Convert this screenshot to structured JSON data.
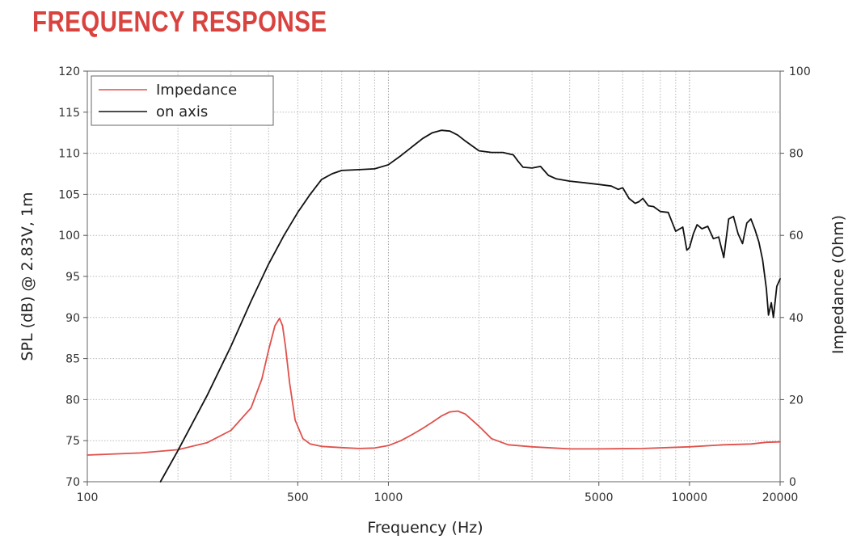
{
  "title": "FREQUENCY RESPONSE",
  "colors": {
    "title": "#d9433f",
    "impedance": "#e0514c",
    "on_axis": "#111111",
    "grid": "#b8b8b8"
  },
  "chart_data": {
    "type": "line",
    "xscale": "log",
    "xlabel": "Frequency (Hz)",
    "ylabel": "SPL (dB) @ 2.83V, 1m",
    "y2label": "Impedance (Ohm)",
    "xlim": [
      100,
      20000
    ],
    "ylim": [
      70,
      120
    ],
    "y2lim": [
      0,
      100
    ],
    "x_ticks": [
      100,
      500,
      1000,
      5000,
      10000,
      20000
    ],
    "x_tick_labels": [
      "100",
      "500",
      "1000",
      "5000",
      "10000",
      "20000"
    ],
    "y_ticks": [
      70,
      75,
      80,
      85,
      90,
      95,
      100,
      105,
      110,
      115,
      120
    ],
    "y_tick_labels": [
      "70",
      "75",
      "80",
      "85",
      "90",
      "95",
      "100",
      "105",
      "110",
      "115",
      "120"
    ],
    "y2_ticks": [
      0,
      20,
      40,
      60,
      80,
      100
    ],
    "y2_tick_labels": [
      "0",
      "20",
      "40",
      "60",
      "80",
      "100"
    ],
    "legend_position": "top-left",
    "legend": [
      "Impedance",
      "on axis"
    ],
    "series": [
      {
        "name": "Impedance",
        "axis": "right",
        "x": [
          100,
          150,
          200,
          250,
          300,
          350,
          380,
          400,
          420,
          435,
          445,
          455,
          470,
          490,
          520,
          550,
          600,
          700,
          800,
          900,
          1000,
          1100,
          1200,
          1300,
          1400,
          1500,
          1600,
          1700,
          1800,
          2000,
          2200,
          2500,
          3000,
          4000,
          5000,
          7000,
          10000,
          13000,
          16000,
          18000,
          20000
        ],
        "values": [
          6.5,
          7.0,
          7.8,
          9.5,
          12.5,
          18.0,
          25.0,
          32.0,
          38.0,
          39.8,
          38.0,
          33.0,
          24.0,
          15.0,
          10.5,
          9.2,
          8.6,
          8.3,
          8.1,
          8.2,
          8.8,
          10.0,
          11.5,
          13.0,
          14.5,
          16.0,
          17.0,
          17.2,
          16.5,
          13.5,
          10.5,
          9.0,
          8.5,
          8.0,
          8.0,
          8.1,
          8.5,
          9.0,
          9.2,
          9.6,
          9.7
        ]
      },
      {
        "name": "on axis",
        "axis": "left",
        "x": [
          175,
          200,
          250,
          300,
          350,
          400,
          450,
          500,
          550,
          600,
          650,
          700,
          800,
          900,
          1000,
          1100,
          1200,
          1300,
          1400,
          1500,
          1600,
          1700,
          1800,
          2000,
          2200,
          2400,
          2600,
          2700,
          2800,
          3000,
          3200,
          3400,
          3600,
          4000,
          4500,
          5000,
          5500,
          5800,
          6000,
          6300,
          6600,
          6800,
          7000,
          7300,
          7600,
          8000,
          8500,
          9000,
          9500,
          9800,
          10000,
          10300,
          10600,
          11000,
          11500,
          12000,
          12500,
          13000,
          13500,
          14000,
          14500,
          15000,
          15500,
          16000,
          16500,
          17000,
          17500,
          18000,
          18300,
          18700,
          19000,
          19500,
          20000
        ],
        "values": [
          70,
          73.8,
          80.5,
          86.5,
          92,
          96.5,
          100,
          102.8,
          105,
          106.8,
          107.5,
          107.9,
          108.0,
          108.1,
          108.6,
          109.7,
          110.8,
          111.8,
          112.5,
          112.8,
          112.7,
          112.2,
          111.5,
          110.3,
          110.1,
          110.1,
          109.8,
          109.0,
          108.3,
          108.2,
          108.4,
          107.3,
          106.9,
          106.6,
          106.4,
          106.2,
          106.0,
          105.6,
          105.8,
          104.5,
          103.9,
          104.1,
          104.5,
          103.6,
          103.5,
          102.9,
          102.8,
          100.5,
          101.0,
          98.2,
          98.5,
          100.2,
          101.3,
          100.8,
          101.1,
          99.6,
          99.8,
          97.3,
          102.0,
          102.3,
          100.2,
          99.0,
          101.5,
          102.0,
          100.7,
          99.2,
          97.0,
          93.5,
          90.3,
          91.8,
          90.0,
          93.8,
          94.7
        ]
      }
    ]
  }
}
